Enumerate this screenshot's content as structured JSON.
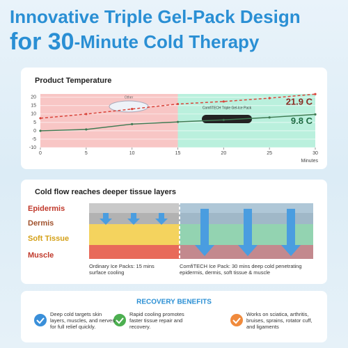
{
  "header": {
    "line1": "Innovative Triple Gel-Pack Design",
    "line2_highlight": "for 30",
    "line2_rest": "-Minute Cold Therapy"
  },
  "chart_data": {
    "type": "line",
    "title": "Product Temperature",
    "x_label": "Minutes",
    "x": [
      0,
      5,
      10,
      15,
      20,
      25,
      30
    ],
    "xlim": [
      0,
      30
    ],
    "xticks": [
      0,
      5,
      10,
      15,
      20,
      25,
      30
    ],
    "ylim": [
      -10,
      22
    ],
    "yticks": [
      -10,
      -5,
      0,
      5,
      10,
      15,
      20
    ],
    "series": [
      {
        "name": "Other",
        "color": "#d9443a",
        "dashed": true,
        "values": [
          7.5,
          10,
          13,
          16,
          17.5,
          19.5,
          21.9
        ],
        "end_label": "21.9 C"
      },
      {
        "name": "ComfiTECH Triple Gel-Ice Pack",
        "color": "#3f7a52",
        "dashed": false,
        "values": [
          0,
          0.8,
          4,
          5.3,
          6.5,
          8,
          9.8
        ],
        "end_label": "9.8 C"
      }
    ]
  },
  "tissue": {
    "title": "Cold flow reaches deeper tissue layers",
    "layers": [
      "Epidermis",
      "Dermis",
      "Soft Tissue",
      "Muscle"
    ],
    "captions": [
      "Ordinary Ice Packs: 15 mins surface cooling",
      "ComfiTECH Ice Pack: 30 mins deep cold penetrating epidermis, dermis, soft tissue & muscle"
    ]
  },
  "benefits": {
    "title": "RECOVERY BENEFITS",
    "items": [
      "Deep cold targets skin layers, muscles, and nerves for full relief quickly.",
      "Rapid cooling promotes faster tissue repair and recovery.",
      "Works on sciatica, arthritis, bruises, sprains, rotator cuff, and ligaments"
    ]
  }
}
